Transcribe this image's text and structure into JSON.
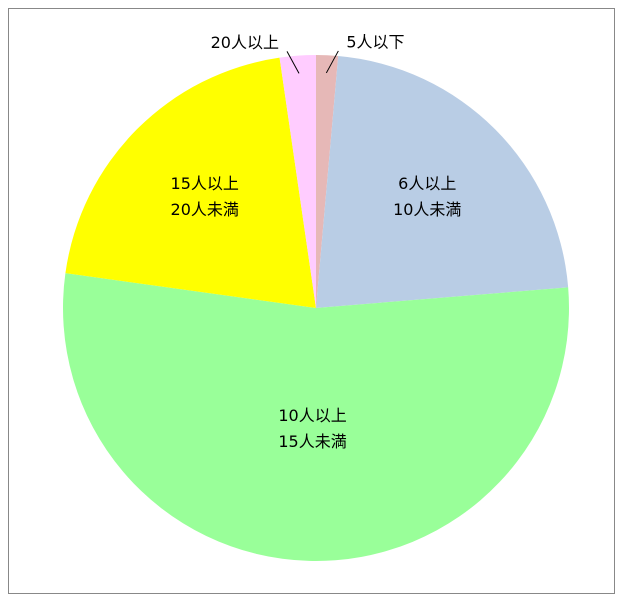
{
  "chart_data": {
    "type": "pie",
    "categories": [
      [
        "5人以下"
      ],
      [
        "6人以上",
        "10人未満"
      ],
      [
        "10人以上",
        "15人未満"
      ],
      [
        "15人以上",
        "20人未満"
      ],
      [
        "20人以上"
      ]
    ],
    "values": [
      1.4,
      22.3,
      53.5,
      20.5,
      2.3
    ],
    "colors": [
      "#e6b8b7",
      "#b9cde5",
      "#99ff99",
      "#ffff00",
      "#ffccff"
    ]
  }
}
